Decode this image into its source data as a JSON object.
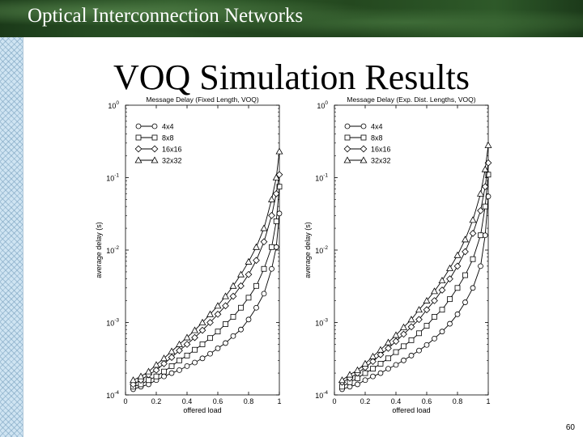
{
  "header": {
    "title": "Optical Interconnection Networks"
  },
  "slide": {
    "title": "VOQ Simulation Results",
    "page_number": "60"
  },
  "colors": {
    "header_bg": "#2a5226",
    "strip_bg": "#cfe4f2",
    "plot_line": "#000000"
  },
  "chart_data": [
    {
      "type": "line",
      "title": "Message Delay (Fixed Length, VOQ)",
      "xlabel": "offered load",
      "ylabel": "average delay (s)",
      "xlim": [
        0,
        1
      ],
      "ylim": [
        0.0001,
        1
      ],
      "yscale": "log",
      "xticks": [
        "0",
        "0.2",
        "0.4",
        "0.6",
        "0.8",
        "1"
      ],
      "yticks": [
        {
          "base": "10",
          "exp": "0"
        },
        {
          "base": "10",
          "exp": "-1"
        },
        {
          "base": "10",
          "exp": "-2"
        },
        {
          "base": "10",
          "exp": "-3"
        },
        {
          "base": "10",
          "exp": "-4"
        }
      ],
      "legend": "top-left",
      "x": [
        0.05,
        0.1,
        0.15,
        0.2,
        0.25,
        0.3,
        0.35,
        0.4,
        0.45,
        0.5,
        0.55,
        0.6,
        0.65,
        0.7,
        0.75,
        0.8,
        0.85,
        0.9,
        0.95,
        0.98,
        1.0
      ],
      "series": [
        {
          "name": "4x4",
          "marker": "circle",
          "values": [
            0.00012,
            0.00013,
            0.00014,
            0.00016,
            0.00018,
            0.0002,
            0.00022,
            0.00025,
            0.00028,
            0.00032,
            0.00037,
            0.00044,
            0.00052,
            0.00065,
            0.0008,
            0.0011,
            0.0016,
            0.0025,
            0.0055,
            0.011,
            0.032
          ]
        },
        {
          "name": "8x8",
          "marker": "square",
          "values": [
            0.00013,
            0.00014,
            0.00016,
            0.00018,
            0.00021,
            0.00025,
            0.0003,
            0.00035,
            0.00042,
            0.0005,
            0.00061,
            0.00075,
            0.00095,
            0.0012,
            0.0016,
            0.0022,
            0.0032,
            0.0055,
            0.011,
            0.025,
            0.075
          ]
        },
        {
          "name": "16x16",
          "marker": "diamond",
          "values": [
            0.00014,
            0.00016,
            0.00019,
            0.00022,
            0.00027,
            0.00033,
            0.00041,
            0.0005,
            0.00062,
            0.00078,
            0.001,
            0.0013,
            0.0017,
            0.0023,
            0.0032,
            0.0046,
            0.0072,
            0.013,
            0.03,
            0.06,
            0.11
          ]
        },
        {
          "name": "32x32",
          "marker": "triangle",
          "values": [
            0.00016,
            0.00018,
            0.00021,
            0.00026,
            0.00032,
            0.0004,
            0.0005,
            0.00062,
            0.00078,
            0.001,
            0.0013,
            0.0017,
            0.0023,
            0.0032,
            0.0046,
            0.0069,
            0.011,
            0.02,
            0.05,
            0.1,
            0.23
          ]
        }
      ]
    },
    {
      "type": "line",
      "title": "Message Delay (Exp. Dist. Lengths, VOQ)",
      "xlabel": "offered load",
      "ylabel": "average delay (s)",
      "xlim": [
        0,
        1
      ],
      "ylim": [
        0.0001,
        1
      ],
      "yscale": "log",
      "xticks": [
        "0",
        "0.2",
        "0.4",
        "0.6",
        "0.8",
        "1"
      ],
      "yticks": [
        {
          "base": "10",
          "exp": "0"
        },
        {
          "base": "10",
          "exp": "-1"
        },
        {
          "base": "10",
          "exp": "-2"
        },
        {
          "base": "10",
          "exp": "-3"
        },
        {
          "base": "10",
          "exp": "-4"
        }
      ],
      "legend": "top-left",
      "x": [
        0.05,
        0.1,
        0.15,
        0.2,
        0.25,
        0.3,
        0.35,
        0.4,
        0.45,
        0.5,
        0.55,
        0.6,
        0.65,
        0.7,
        0.75,
        0.8,
        0.85,
        0.9,
        0.95,
        0.98,
        1.0
      ],
      "series": [
        {
          "name": "4x4",
          "marker": "circle",
          "values": [
            0.00012,
            0.00013,
            0.00014,
            0.00016,
            0.00018,
            0.0002,
            0.00023,
            0.00026,
            0.0003,
            0.00035,
            0.00041,
            0.00049,
            0.0006,
            0.00075,
            0.00096,
            0.0013,
            0.0019,
            0.003,
            0.006,
            0.016,
            0.055
          ]
        },
        {
          "name": "8x8",
          "marker": "square",
          "values": [
            0.00013,
            0.00015,
            0.00017,
            0.0002,
            0.00023,
            0.00027,
            0.00032,
            0.00039,
            0.00047,
            0.00057,
            0.00071,
            0.0009,
            0.0012,
            0.0015,
            0.0021,
            0.003,
            0.0045,
            0.0075,
            0.016,
            0.04,
            0.11
          ]
        },
        {
          "name": "16x16",
          "marker": "diamond",
          "values": [
            0.00015,
            0.00017,
            0.0002,
            0.00024,
            0.00029,
            0.00036,
            0.00044,
            0.00055,
            0.00069,
            0.00087,
            0.0011,
            0.0015,
            0.002,
            0.0028,
            0.004,
            0.006,
            0.0095,
            0.017,
            0.035,
            0.075,
            0.16
          ]
        },
        {
          "name": "32x32",
          "marker": "triangle",
          "values": [
            0.00016,
            0.00019,
            0.00022,
            0.00027,
            0.00034,
            0.00042,
            0.00053,
            0.00067,
            0.00086,
            0.0011,
            0.0015,
            0.002,
            0.0027,
            0.0038,
            0.0056,
            0.0085,
            0.014,
            0.026,
            0.06,
            0.13,
            0.28
          ]
        }
      ]
    }
  ]
}
